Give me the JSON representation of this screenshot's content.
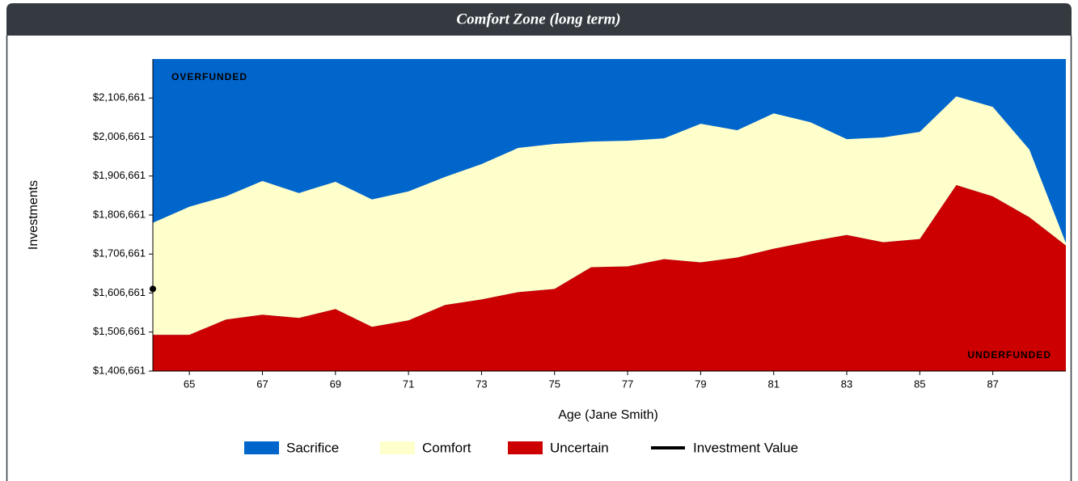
{
  "chart_data": {
    "type": "stacked-area",
    "title": "Comfort Zone (long term)",
    "x_label": "Age (Jane Smith)",
    "y_label": "Investments",
    "annotations": [
      "OVERFUNDED",
      "UNDERFUNDED"
    ],
    "x": [
      64,
      65,
      66,
      67,
      68,
      69,
      70,
      71,
      72,
      73,
      74,
      75,
      76,
      77,
      78,
      79,
      80,
      81,
      82,
      83,
      84,
      85,
      86,
      87,
      88,
      89
    ],
    "series": [
      {
        "name": "Sacrifice",
        "color": "#0066cc"
      },
      {
        "name": "Comfort",
        "color": "#ffffcc",
        "values": [
          287000,
          328300,
          315900,
          342800,
          320100,
          326300,
          326300,
          330400,
          328300,
          346900,
          369600,
          371700,
          322100,
          322100,
          309700,
          355200,
          326300,
          346900,
          305600,
          245700,
          268400,
          274600,
          227100,
          229200,
          173500,
          6200
        ]
      },
      {
        "name": "Uncertain",
        "color": "#cc0000",
        "values": [
          1499600,
          1499600,
          1538800,
          1551200,
          1542900,
          1565700,
          1520200,
          1536800,
          1576000,
          1590400,
          1609000,
          1617300,
          1673000,
          1675100,
          1693700,
          1685400,
          1697800,
          1720500,
          1739100,
          1755600,
          1737100,
          1745300,
          1883700,
          1854700,
          1801100,
          1728800
        ]
      },
      {
        "name": "Investment Value",
        "color": "#000000",
        "x": [
          64
        ],
        "values": [
          1617300
        ]
      }
    ],
    "xlim": [
      64,
      89
    ],
    "xticks": [
      65,
      67,
      69,
      71,
      73,
      75,
      77,
      79,
      81,
      83,
      85,
      87
    ],
    "ylim": [
      1406661,
      2206661
    ],
    "yticks": [
      {
        "value": 1406661,
        "label": "$1,406,661"
      },
      {
        "value": 1506661,
        "label": "$1,506,661"
      },
      {
        "value": 1606661,
        "label": "$1,606,661"
      },
      {
        "value": 1706661,
        "label": "$1,706,661"
      },
      {
        "value": 1806661,
        "label": "$1,806,661"
      },
      {
        "value": 1906661,
        "label": "$1,906,661"
      },
      {
        "value": 2006661,
        "label": "$2,006,661"
      },
      {
        "value": 2106661,
        "label": "$2,106,661"
      }
    ]
  }
}
